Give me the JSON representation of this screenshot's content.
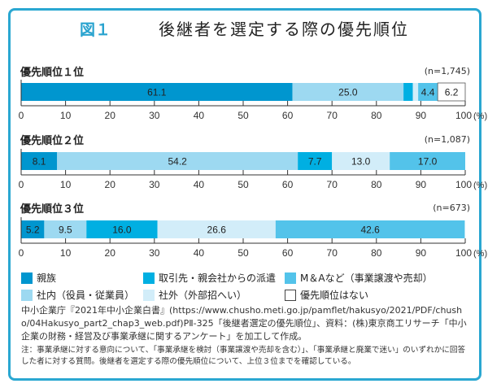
{
  "chart_data": {
    "type": "bar",
    "orientation": "horizontal-stacked",
    "title_number": "図１",
    "title": "後継者を選定する際の優先順位",
    "xlim": [
      0,
      100
    ],
    "ticks": [
      "0",
      "10",
      "20",
      "30",
      "40",
      "50",
      "60",
      "70",
      "80",
      "90",
      "100"
    ],
    "unit": "(%)",
    "colors": {
      "親族": "#0096cf",
      "取引先・親会社からの派遣": "#00afe2",
      "M＆Aなど（事業譲渡や売却）": "#53c3ea",
      "社内（役員・従業員）": "#9dd9f1",
      "社外（外部招へい）": "#d2edf9",
      "優先順位はない": "#ffffff"
    },
    "rows": [
      {
        "label": "優先順位１位",
        "n": "(n=1,745)",
        "segments": [
          {
            "series": "親族",
            "value": 61.1,
            "label": "61.1"
          },
          {
            "series": "社内（役員・従業員）",
            "value": 25.0,
            "label": "25.0"
          },
          {
            "series": "取引先・親会社からの派遣",
            "value": 2.1,
            "label": ""
          },
          {
            "series": "社外（外部招へい）",
            "value": 1.2,
            "label": ""
          },
          {
            "series": "M＆Aなど（事業譲渡や売却）",
            "value": 4.4,
            "label": "4.4"
          },
          {
            "series": "優先順位はない",
            "value": 6.2,
            "label": "6.2"
          }
        ]
      },
      {
        "label": "優先順位２位",
        "n": "(n=1,087)",
        "segments": [
          {
            "series": "親族",
            "value": 8.1,
            "label": "8.1"
          },
          {
            "series": "社内（役員・従業員）",
            "value": 54.2,
            "label": "54.2"
          },
          {
            "series": "取引先・親会社からの派遣",
            "value": 7.7,
            "label": "7.7"
          },
          {
            "series": "社外（外部招へい）",
            "value": 13.0,
            "label": "13.0"
          },
          {
            "series": "M＆Aなど（事業譲渡や売却）",
            "value": 17.0,
            "label": "17.0"
          }
        ]
      },
      {
        "label": "優先順位３位",
        "n": "(n=673)",
        "segments": [
          {
            "series": "親族",
            "value": 5.2,
            "label": "5.2"
          },
          {
            "series": "社内（役員・従業員）",
            "value": 9.5,
            "label": "9.5"
          },
          {
            "series": "取引先・親会社からの派遣",
            "value": 16.0,
            "label": "16.0"
          },
          {
            "series": "社外（外部招へい）",
            "value": 26.6,
            "label": "26.6"
          },
          {
            "series": "M＆Aなど（事業譲渡や売却）",
            "value": 42.6,
            "label": "42.6"
          }
        ]
      }
    ],
    "legend": [
      "親族",
      "取引先・親会社からの派遣",
      "M＆Aなど（事業譲渡や売却）",
      "社内（役員・従業員）",
      "社外（外部招へい）",
      "優先順位はない"
    ],
    "legend_placement": "bottom"
  },
  "source": "中小企業庁『2021年中小企業白書』(https://www.chusho.meti.go.jp/pamflet/hakusyo/2021/PDF/chusho/04Hakusyo_part2_chap3_web.pdf)PⅡ-325「後継者選定の優先順位」、資料：(株)東京商工リサーチ「中小企業の財務・経営及び事業承継に関するアンケート」を加工して作成。",
  "note": "注：事業承継に対する意向について、「事業承継を検討（事業譲渡や売却を含む）」、「事業承継と廃業で迷い」のいずれかに回答した者に対する質問。後継者を選定する際の優先順位について、上位３位までを確認している。"
}
